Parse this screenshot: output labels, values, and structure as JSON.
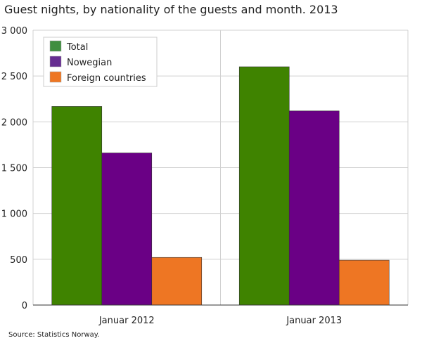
{
  "chart_data": {
    "type": "bar",
    "title": "Guest nights, by nationality of the guests and month. 2013",
    "categories": [
      "Januar 2012",
      "Januar 2013"
    ],
    "series": [
      {
        "name": "Total",
        "values": [
          2168,
          2601
        ],
        "color": "#3f8300"
      },
      {
        "name": "Nowegian",
        "values": [
          1660,
          2119
        ],
        "color": "#6a0085"
      },
      {
        "name": "Foreign countries",
        "values": [
          520,
          490
        ],
        "color": "#ee7623"
      }
    ],
    "legend_colors": [
      "#3f8e3f",
      "#662d91",
      "#ee7623"
    ],
    "ylim": [
      0,
      3000
    ],
    "yticks": [
      0,
      500,
      1000,
      1500,
      2000,
      2500,
      3000
    ],
    "ytick_labels": [
      "0",
      "500",
      "1 000",
      "1 500",
      "2 000",
      "2 500",
      "3 000"
    ],
    "grid": true,
    "legend_placement": "top-left",
    "source": "Source: Statistics Norway."
  }
}
